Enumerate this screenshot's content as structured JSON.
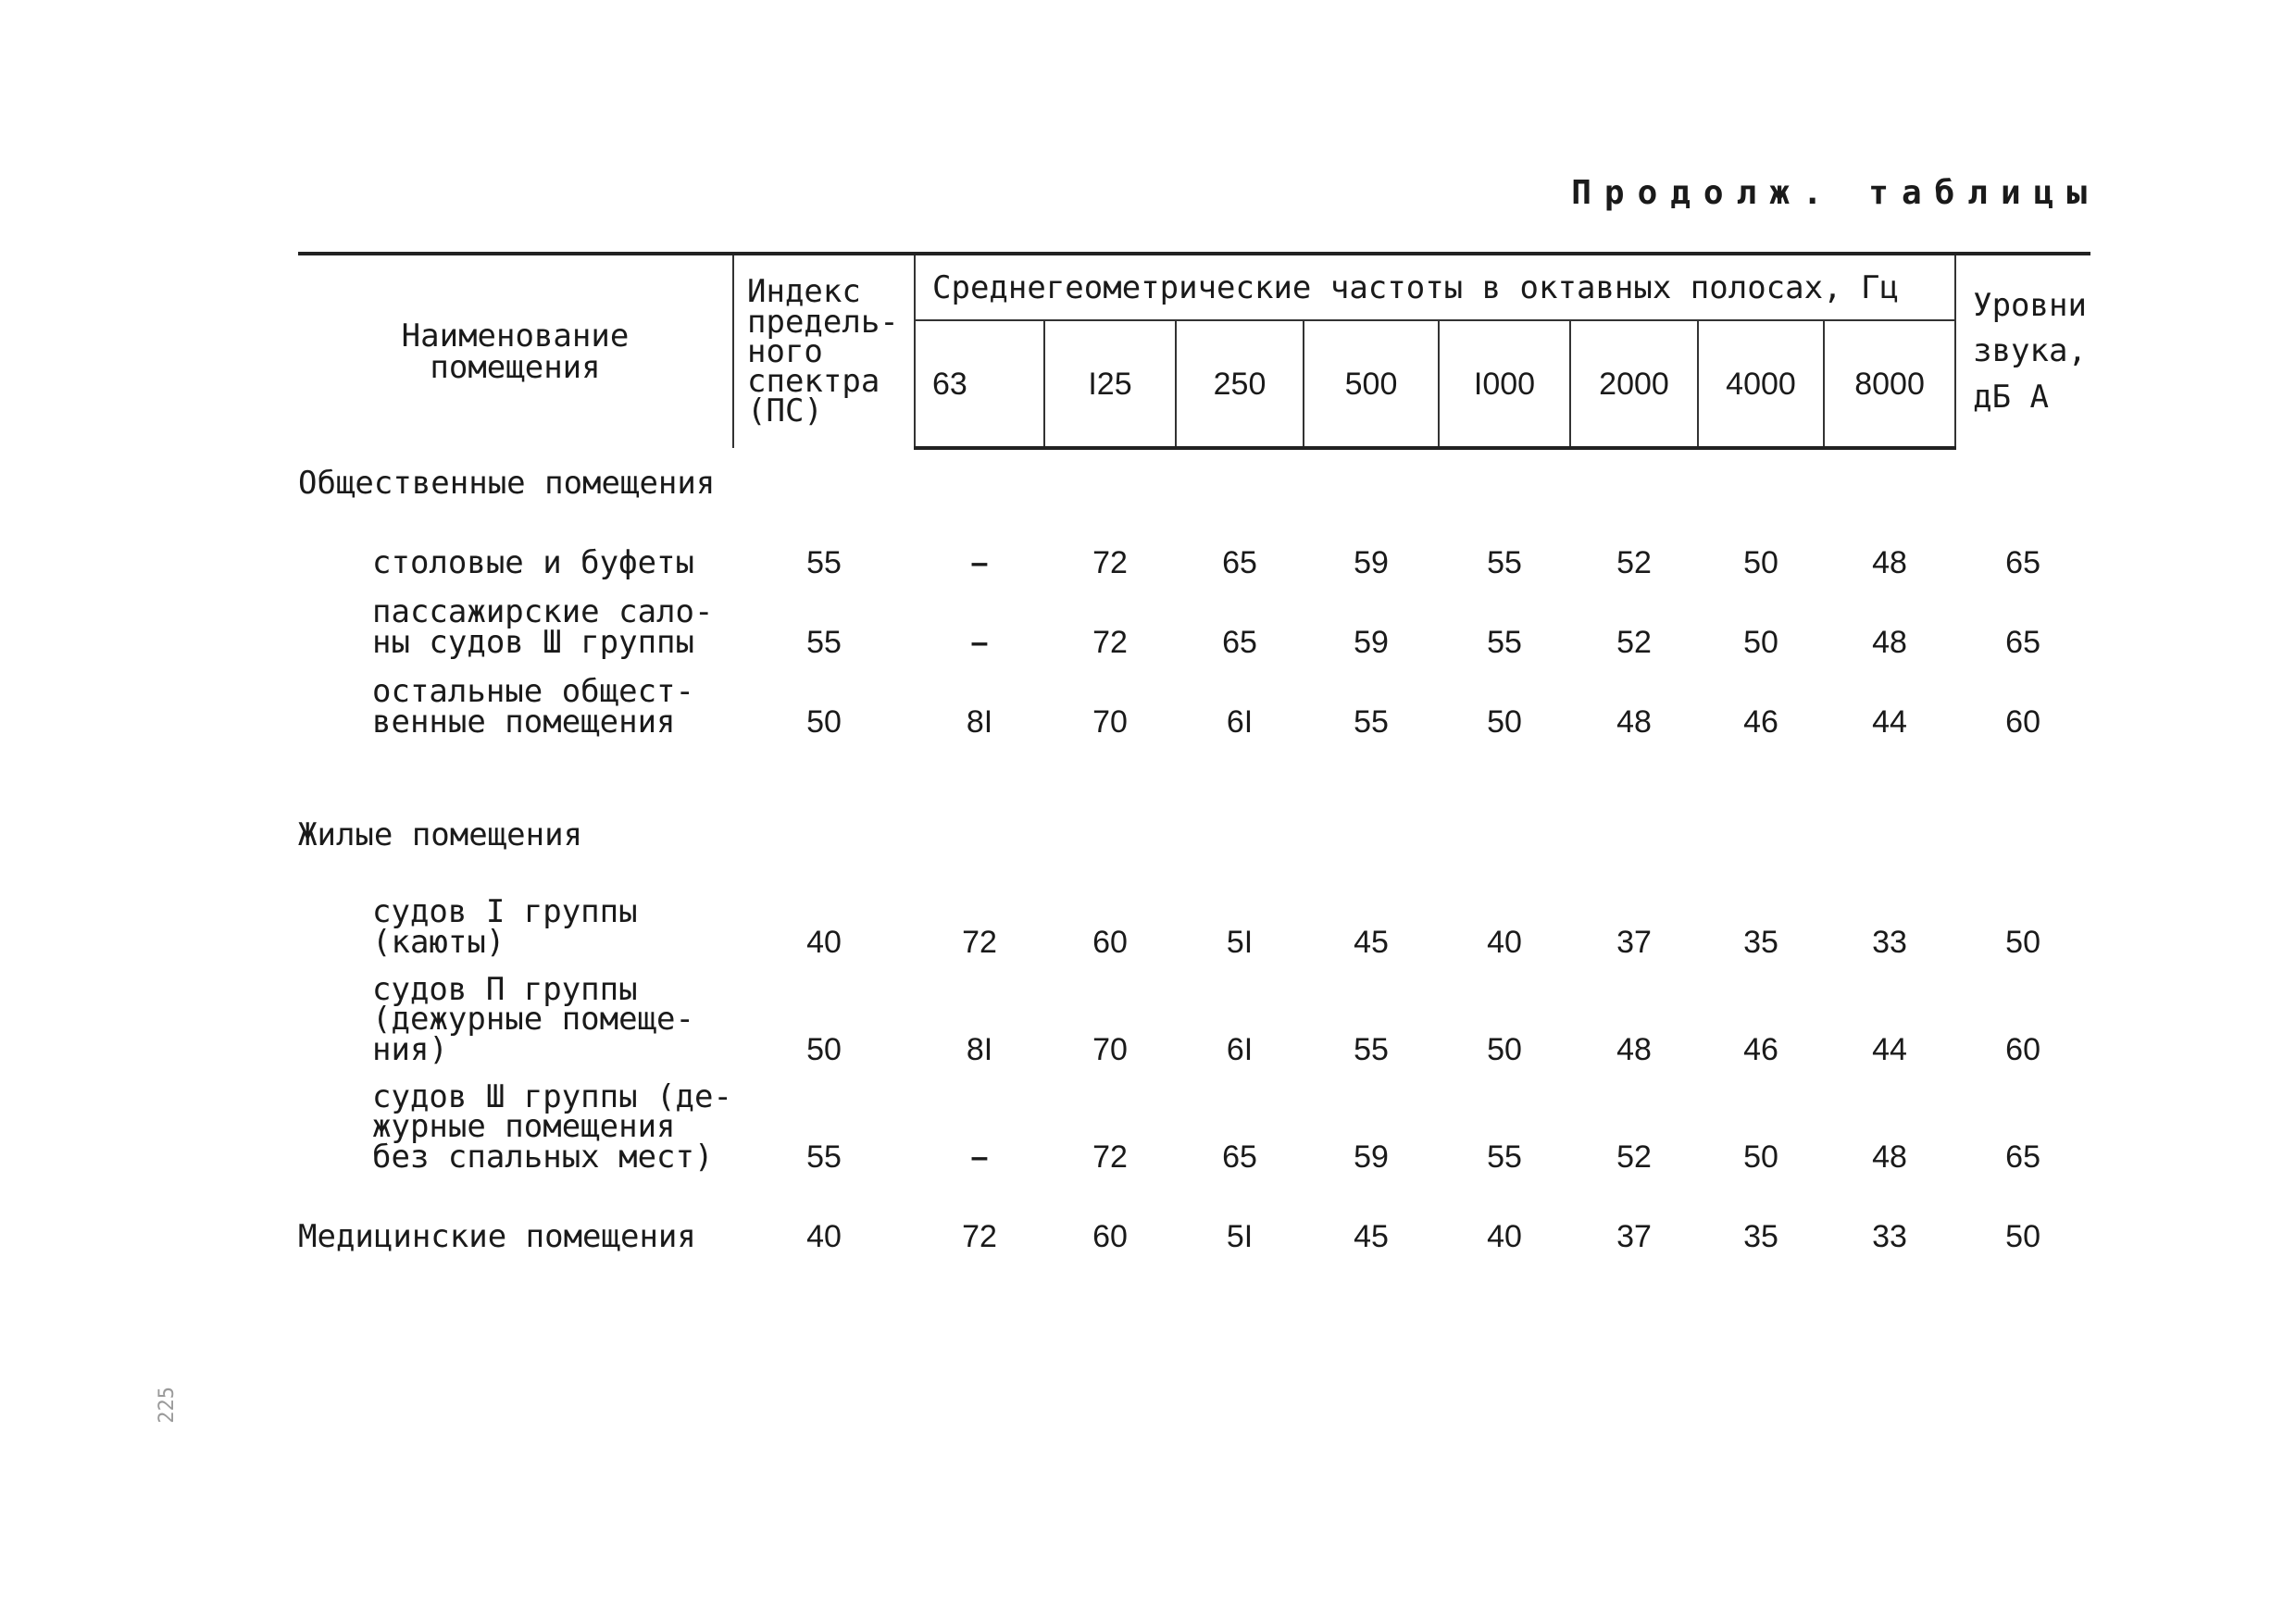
{
  "document": {
    "continuation": "Продолж. таблицы"
  },
  "table": {
    "headers": {
      "room": "Наименование\nпомещения",
      "ps": "Индекс\nпредель-\nного\nспектра\n(ПС)",
      "freq_title": "Среднегеометрические частоты в октавных полосах, Гц",
      "frequencies": [
        "63",
        "I25",
        "250",
        "500",
        "I000",
        "2000",
        "4000",
        "8000"
      ],
      "level": "Уровни\nзвука,\nдБ А"
    },
    "rows": [
      {
        "type": "section",
        "name": "Общественные помещения"
      },
      {
        "type": "row",
        "name": "столовые и буфеты",
        "ps": "55",
        "values": [
          "–",
          "72",
          "65",
          "59",
          "55",
          "52",
          "50",
          "48"
        ],
        "level": "65"
      },
      {
        "type": "row",
        "name": "пассажирские сало-\nны судов Ш группы",
        "ps": "55",
        "values": [
          "–",
          "72",
          "65",
          "59",
          "55",
          "52",
          "50",
          "48"
        ],
        "level": "65"
      },
      {
        "type": "row",
        "name": "остальные общест-\nвенные помещения",
        "ps": "50",
        "values": [
          "8I",
          "70",
          "6I",
          "55",
          "50",
          "48",
          "46",
          "44"
        ],
        "level": "60"
      },
      {
        "type": "section",
        "name": "Жилые помещения"
      },
      {
        "type": "row",
        "name": "судов I группы\n(каюты)",
        "ps": "40",
        "values": [
          "72",
          "60",
          "5I",
          "45",
          "40",
          "37",
          "35",
          "33"
        ],
        "level": "50"
      },
      {
        "type": "row",
        "name": "судов П группы\n(дежурные помеще-\nния)",
        "ps": "50",
        "values": [
          "8I",
          "70",
          "6I",
          "55",
          "50",
          "48",
          "46",
          "44"
        ],
        "level": "60"
      },
      {
        "type": "row",
        "name": "судов Ш группы (де-\nжурные помещения\nбез спальных мест)",
        "ps": "55",
        "values": [
          "–",
          "72",
          "65",
          "59",
          "55",
          "52",
          "50",
          "48"
        ],
        "level": "65"
      },
      {
        "type": "top",
        "name": "Медицинские помещения",
        "ps": "40",
        "values": [
          "72",
          "60",
          "5I",
          "45",
          "40",
          "37",
          "35",
          "33"
        ],
        "level": "50"
      }
    ]
  },
  "page_mark": "225"
}
